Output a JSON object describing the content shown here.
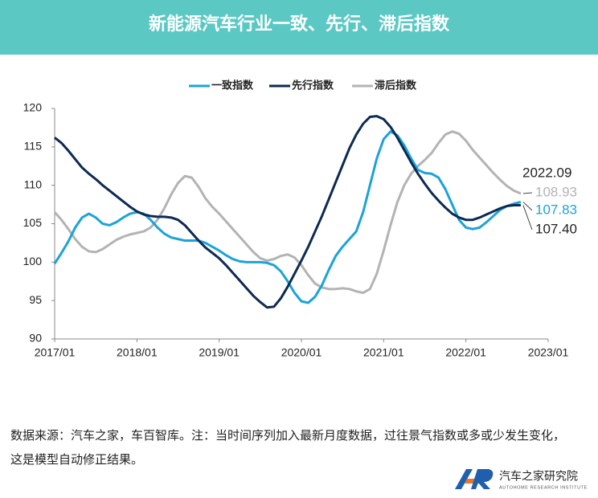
{
  "chart_data": {
    "type": "line",
    "title": "新能源汽车行业一致、先行、滞后指数",
    "x": [
      0,
      1,
      2,
      3,
      4,
      5,
      6,
      7,
      8,
      9,
      10,
      11,
      12,
      13,
      14,
      15,
      16,
      17,
      18,
      19,
      20,
      21,
      22,
      23,
      24,
      25,
      26,
      27,
      28,
      29,
      30,
      31,
      32,
      33,
      34,
      35,
      36,
      37,
      38,
      39,
      40,
      41,
      42,
      43,
      44,
      45,
      46,
      47,
      48,
      49,
      50,
      51,
      52,
      53,
      54,
      55,
      56,
      57,
      58,
      59,
      60,
      61,
      62,
      63,
      64,
      65,
      66,
      67,
      68
    ],
    "xlim": [
      0,
      72
    ],
    "xticks": [
      {
        "value": 0,
        "label": "2017/01"
      },
      {
        "value": 12,
        "label": "2018/01"
      },
      {
        "value": 24,
        "label": "2019/01"
      },
      {
        "value": 36,
        "label": "2020/01"
      },
      {
        "value": 48,
        "label": "2021/01"
      },
      {
        "value": 60,
        "label": "2022/01"
      },
      {
        "value": 72,
        "label": "2023/01"
      }
    ],
    "ylim": [
      90,
      120
    ],
    "yticks": [
      90,
      95,
      100,
      105,
      110,
      115,
      120
    ],
    "legend": "top",
    "series": [
      {
        "name": "一致指数",
        "color": "#1ba3d8",
        "values": [
          99.8,
          101.2,
          102.7,
          104.5,
          105.8,
          106.3,
          105.8,
          105.0,
          104.8,
          105.2,
          105.8,
          106.3,
          106.5,
          106.3,
          105.5,
          104.5,
          103.7,
          103.2,
          103.0,
          102.8,
          102.8,
          102.8,
          102.5,
          102.0,
          101.5,
          100.9,
          100.4,
          100.1,
          100.0,
          100.0,
          100.0,
          99.9,
          99.6,
          98.8,
          97.5,
          96.0,
          94.9,
          94.7,
          95.5,
          97.0,
          99.0,
          100.8,
          102.0,
          103.0,
          104.0,
          106.5,
          110.0,
          113.5,
          116.0,
          117.0,
          116.5,
          115.2,
          113.5,
          112.0,
          111.6,
          111.5,
          111.0,
          109.5,
          107.5,
          105.5,
          104.5,
          104.3,
          104.5,
          105.2,
          106.0,
          106.8,
          107.3,
          107.6,
          107.83
        ]
      },
      {
        "name": "先行指数",
        "color": "#0d2a52",
        "values": [
          116.2,
          115.5,
          114.5,
          113.4,
          112.3,
          111.5,
          110.8,
          110.0,
          109.3,
          108.6,
          107.9,
          107.2,
          106.6,
          106.2,
          106.0,
          105.9,
          105.9,
          105.8,
          105.5,
          104.8,
          103.8,
          102.8,
          101.9,
          101.2,
          100.5,
          99.6,
          98.6,
          97.6,
          96.6,
          95.6,
          94.8,
          94.1,
          94.2,
          95.3,
          96.8,
          98.5,
          100.2,
          102.0,
          104.0,
          106.0,
          108.2,
          110.4,
          112.6,
          114.8,
          116.6,
          118.0,
          118.9,
          119.0,
          118.6,
          117.6,
          116.2,
          114.6,
          113.0,
          111.5,
          110.2,
          109.0,
          108.0,
          107.1,
          106.3,
          105.8,
          105.5,
          105.5,
          105.8,
          106.2,
          106.6,
          107.0,
          107.3,
          107.4,
          107.4
        ],
        "value_labels": [
          null,
          null,
          null,
          null,
          null,
          null,
          null,
          null,
          null,
          null,
          null,
          null,
          null,
          null,
          null,
          null,
          null,
          null,
          null,
          null,
          null,
          null,
          null,
          null,
          null,
          null,
          null,
          null,
          null,
          null,
          null,
          null,
          null,
          null,
          null,
          null,
          null,
          null,
          null,
          null,
          null,
          null,
          null,
          null,
          null,
          null,
          null,
          null,
          null,
          null,
          null,
          null,
          null,
          null,
          null,
          null,
          null,
          null,
          null,
          null,
          null,
          null,
          null,
          null,
          null,
          null,
          null,
          null,
          "107.40"
        ]
      },
      {
        "name": "滞后指数",
        "color": "#b3b3b3",
        "values": [
          106.5,
          105.5,
          104.3,
          103.0,
          102.0,
          101.4,
          101.3,
          101.7,
          102.3,
          102.9,
          103.3,
          103.6,
          103.8,
          104.0,
          104.5,
          105.5,
          107.0,
          108.8,
          110.3,
          111.2,
          111.0,
          109.8,
          108.3,
          107.2,
          106.3,
          105.3,
          104.3,
          103.3,
          102.3,
          101.3,
          100.5,
          100.2,
          100.4,
          100.8,
          101.0,
          100.6,
          99.6,
          98.3,
          97.2,
          96.7,
          96.5,
          96.5,
          96.6,
          96.5,
          96.2,
          96.0,
          96.5,
          98.5,
          101.5,
          104.8,
          107.8,
          110.0,
          111.5,
          112.5,
          113.3,
          114.2,
          115.5,
          116.6,
          117.0,
          116.7,
          115.8,
          114.6,
          113.6,
          112.6,
          111.6,
          110.7,
          109.9,
          109.3,
          108.93
        ]
      }
    ],
    "annotation": "2022.09",
    "source": "数据来源：汽车之家，车百智库。注：当时间序列加入最新月度数据，过往景气指数或多或少发生变化，这是模型自动修正结果。",
    "logo": {
      "name": "汽车之家研究院",
      "subtitle": "AUTOHOME RESEARCH INSTITUTE"
    }
  }
}
